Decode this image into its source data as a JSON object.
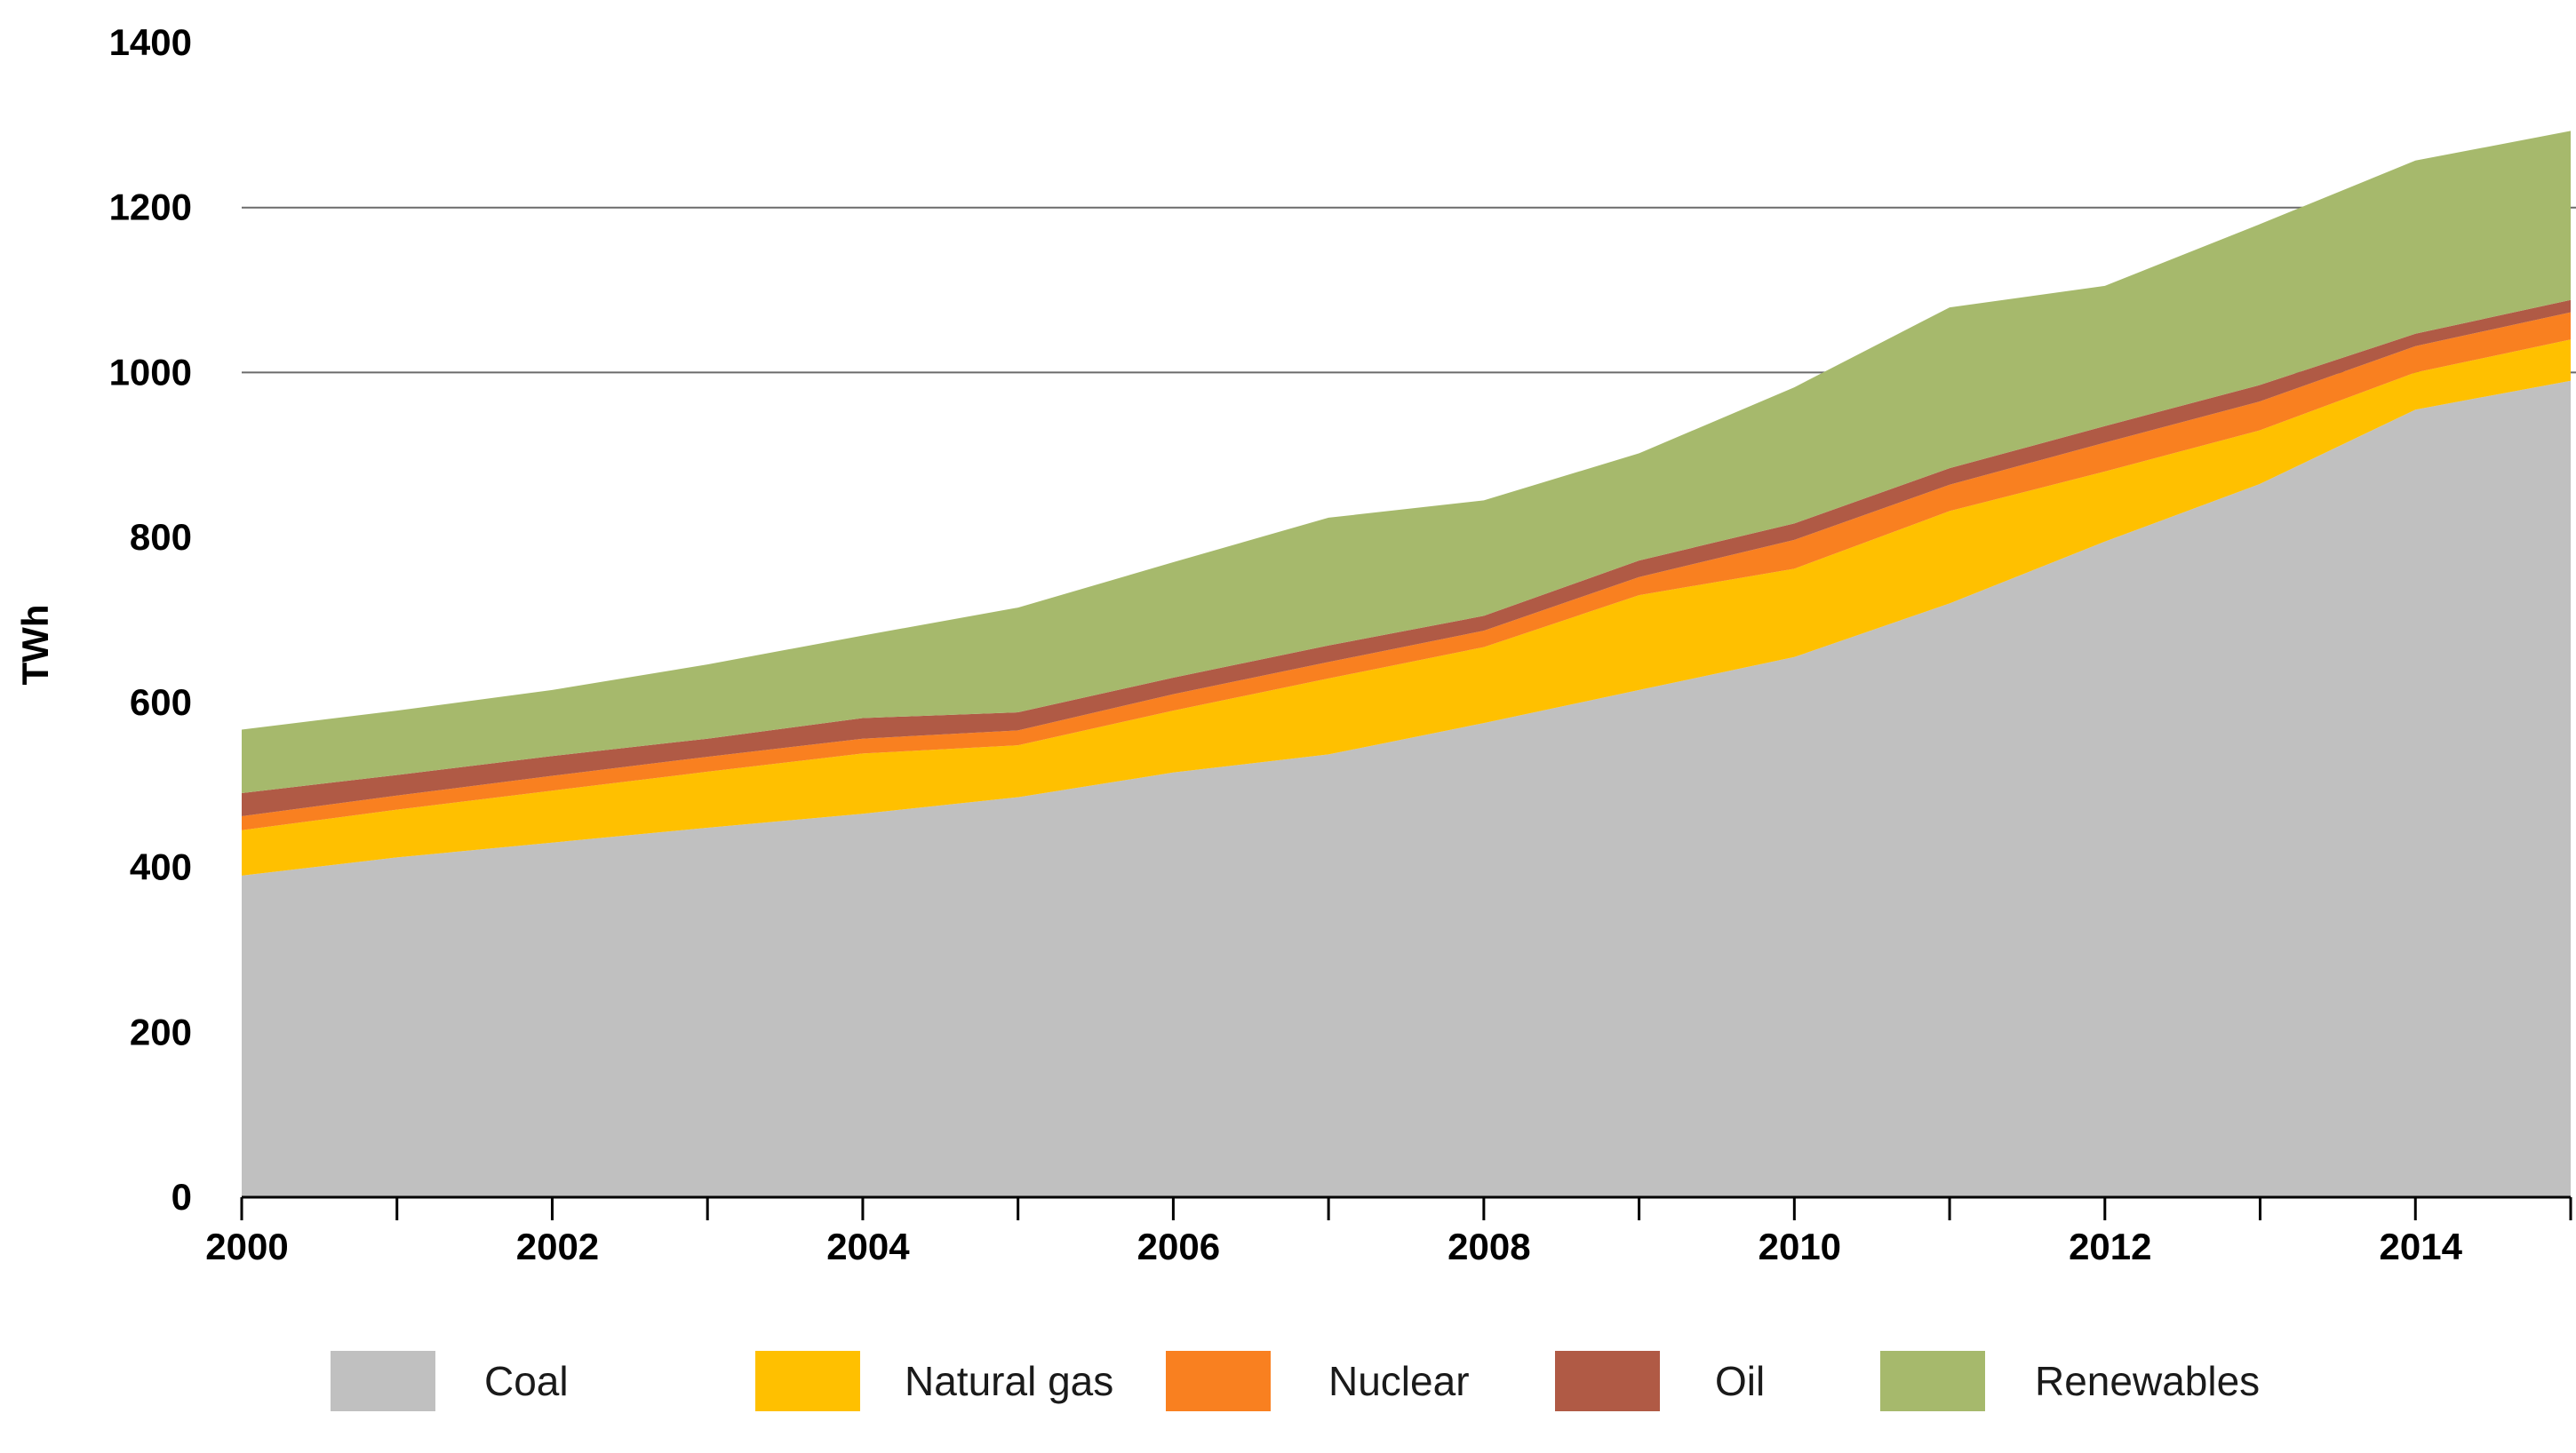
{
  "chart_data": {
    "type": "area",
    "stacked": true,
    "title": "",
    "xlabel": "",
    "ylabel": "TWh",
    "ylim": [
      0,
      1400
    ],
    "yticks": [
      0,
      200,
      400,
      600,
      800,
      1000,
      1200,
      1400
    ],
    "ytick_labels": [
      "0",
      "200",
      "400",
      "600",
      "800",
      "1000",
      "1200",
      "1400"
    ],
    "xlim": [
      2000,
      2015
    ],
    "xticks": [
      2000,
      2001,
      2002,
      2003,
      2004,
      2005,
      2006,
      2007,
      2008,
      2009,
      2010,
      2011,
      2012,
      2013,
      2014,
      2015
    ],
    "xtick_labels": [
      "2000",
      "2002",
      "2004",
      "2006",
      "2008",
      "2010",
      "2012",
      "2014"
    ],
    "xtick_label_years": [
      2000,
      2002,
      2004,
      2006,
      2008,
      2010,
      2012,
      2014
    ],
    "gridlines_at": [
      1000,
      1200
    ],
    "x": [
      2000,
      2001,
      2002,
      2003,
      2004,
      2005,
      2006,
      2007,
      2008,
      2009,
      2010,
      2011,
      2012,
      2013,
      2014,
      2015
    ],
    "series": [
      {
        "name": "Coal",
        "color": "#c0c0c0",
        "values": [
          390,
          412,
          430,
          448,
          465,
          485,
          515,
          537,
          575,
          615,
          655,
          720,
          795,
          865,
          955,
          990
        ]
      },
      {
        "name": "Natural gas",
        "color": "#ffc000",
        "values": [
          55,
          58,
          63,
          68,
          73,
          63,
          75,
          92,
          92,
          115,
          107,
          112,
          85,
          65,
          45,
          50
        ]
      },
      {
        "name": "Nuclear",
        "color": "#f98020",
        "values": [
          17,
          17,
          18,
          18,
          18,
          18,
          20,
          20,
          20,
          22,
          35,
          32,
          35,
          35,
          32,
          33
        ]
      },
      {
        "name": "Oil",
        "color": "#b05a45",
        "values": [
          28,
          25,
          24,
          22,
          25,
          22,
          20,
          20,
          18,
          20,
          20,
          20,
          20,
          20,
          15,
          15
        ]
      },
      {
        "name": "Renewables",
        "color": "#a6b96c",
        "values": [
          77,
          78,
          80,
          90,
          100,
          127,
          140,
          155,
          140,
          130,
          165,
          195,
          170,
          195,
          210,
          205
        ]
      }
    ],
    "legend": {
      "position": "bottom",
      "entries": [
        "Coal",
        "Natural gas",
        "Nuclear",
        "Oil",
        "Renewables"
      ]
    }
  }
}
